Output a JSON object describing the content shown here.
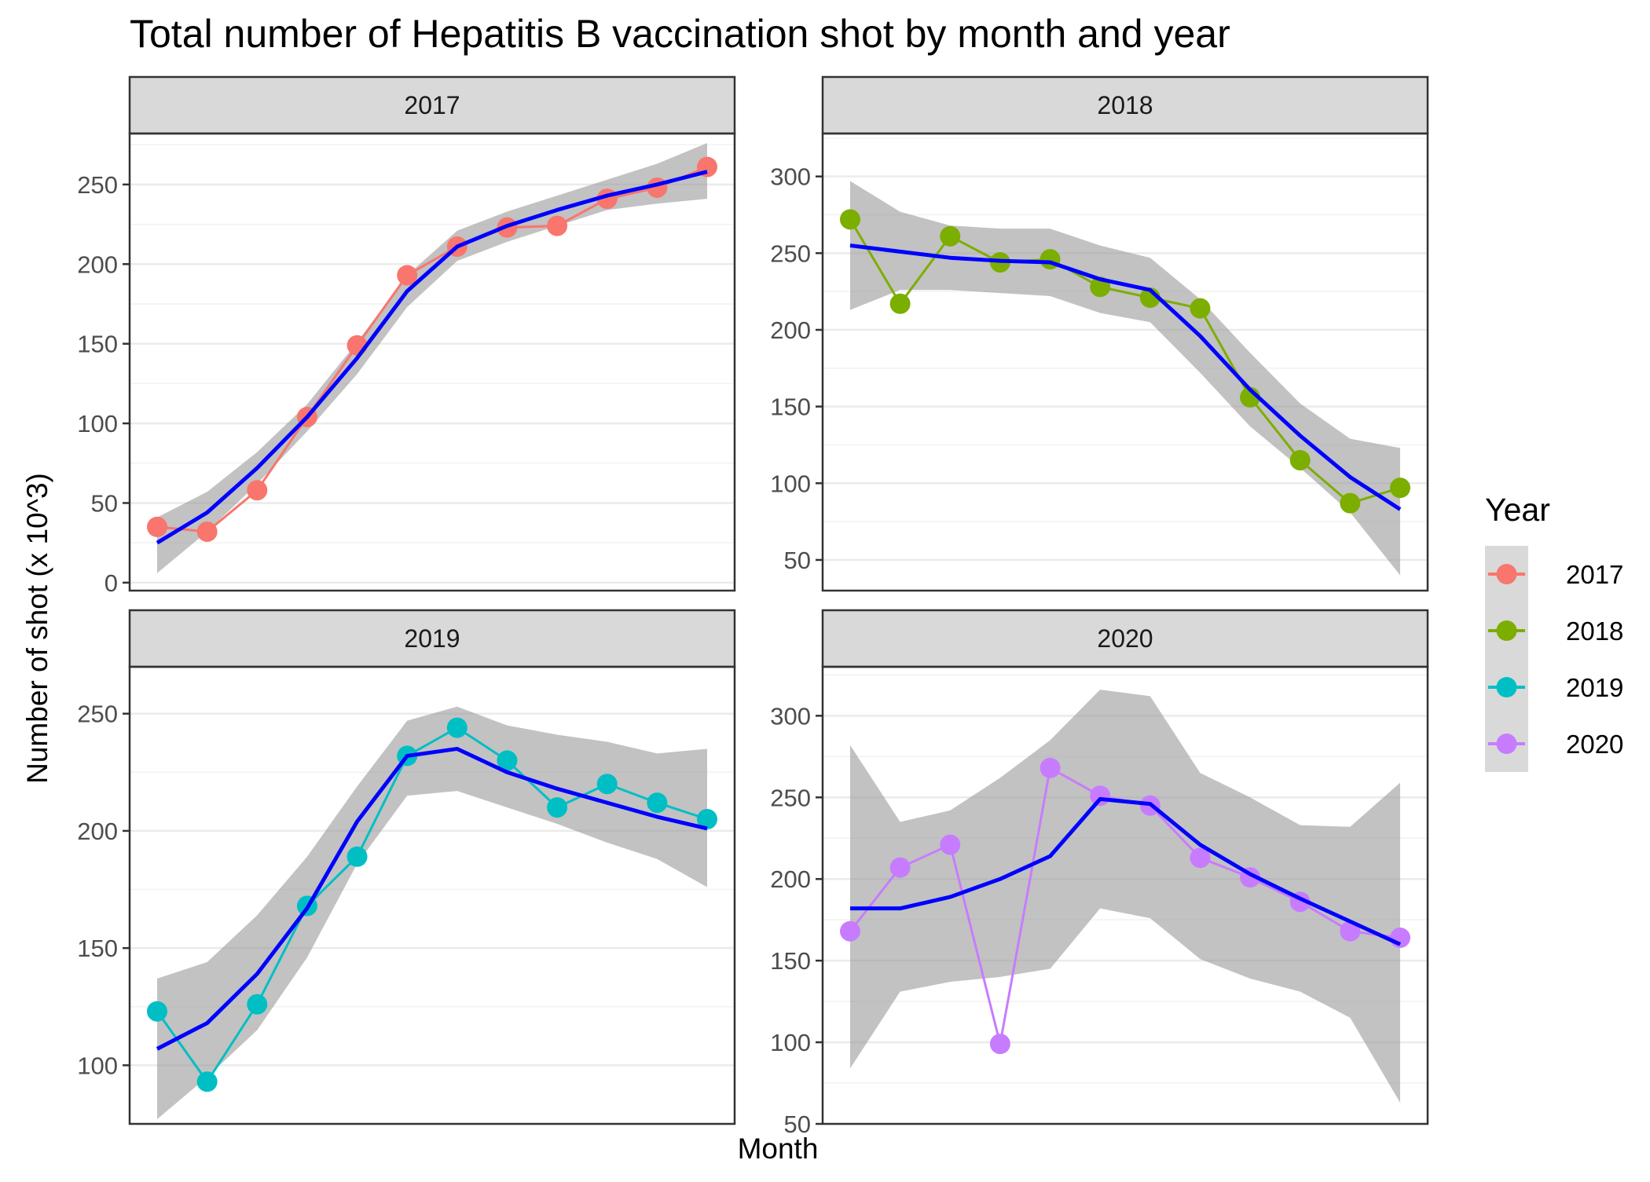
{
  "chart_data": {
    "type": "line",
    "title": "Total number of Hepatitis B vaccination shot by month and year",
    "xlabel": "Month",
    "ylabel": "Number of shot (x 10^3)",
    "facet_scales": "free_y",
    "x": [
      1,
      2,
      3,
      4,
      5,
      6,
      7,
      8,
      9,
      10,
      11,
      12
    ],
    "legend": {
      "title": "Year",
      "position": "right",
      "entries": [
        "2017",
        "2018",
        "2019",
        "2020"
      ]
    },
    "grid": true,
    "smooth_color": "#0000ff",
    "band_color": "#999999",
    "panels": [
      {
        "label": "2017",
        "color": "#f8766d",
        "ylim": [
          -5,
          282
        ],
        "yticks": [
          0,
          50,
          100,
          150,
          200,
          250
        ],
        "values": [
          35,
          32,
          58,
          104,
          149,
          193,
          211,
          223,
          224,
          241,
          248,
          261
        ],
        "smooth": [
          25,
          44,
          72,
          104,
          141,
          183,
          211,
          224,
          234,
          243,
          250,
          258
        ],
        "ci_upper": [
          41,
          57,
          82,
          112,
          151,
          193,
          221,
          233,
          243,
          253,
          263,
          276
        ],
        "ci_lower": [
          6,
          32,
          62,
          95,
          131,
          173,
          202,
          214,
          224,
          234,
          238,
          241
        ]
      },
      {
        "label": "2018",
        "color": "#7cae00",
        "ylim": [
          30,
          328
        ],
        "yticks": [
          50,
          100,
          150,
          200,
          250,
          300
        ],
        "values": [
          272,
          217,
          261,
          244,
          246,
          228,
          221,
          214,
          156,
          115,
          87,
          97
        ],
        "smooth": [
          255,
          251,
          247,
          245,
          244,
          233,
          226,
          196,
          161,
          131,
          104,
          83
        ],
        "ci_upper": [
          297,
          277,
          268,
          266,
          266,
          255,
          247,
          220,
          185,
          152,
          129,
          123
        ],
        "ci_lower": [
          213,
          226,
          226,
          224,
          222,
          211,
          205,
          172,
          137,
          110,
          81,
          40
        ]
      },
      {
        "label": "2019",
        "color": "#00bfc4",
        "ylim": [
          75,
          270
        ],
        "yticks": [
          100,
          150,
          200,
          250
        ],
        "values": [
          123,
          93,
          126,
          168,
          189,
          232,
          244,
          230,
          210,
          220,
          212,
          205
        ],
        "smooth": [
          107,
          118,
          139,
          167,
          204,
          232,
          235,
          225,
          218,
          212,
          206,
          201
        ],
        "ci_upper": [
          137,
          144,
          164,
          189,
          219,
          247,
          253,
          245,
          241,
          238,
          233,
          235
        ],
        "ci_lower": [
          77,
          95,
          115,
          146,
          186,
          215,
          217,
          210,
          203,
          195,
          188,
          176
        ]
      },
      {
        "label": "2020",
        "color": "#c77cff",
        "ylim": [
          50,
          330
        ],
        "yticks": [
          50,
          100,
          150,
          200,
          250,
          300
        ],
        "values": [
          168,
          207,
          221,
          99,
          268,
          251,
          245,
          213,
          201,
          186,
          168,
          164
        ],
        "smooth": [
          182,
          182,
          189,
          200,
          214,
          249,
          246,
          221,
          203,
          188,
          174,
          160
        ],
        "ci_upper": [
          282,
          235,
          242,
          262,
          285,
          316,
          312,
          265,
          250,
          233,
          232,
          259
        ],
        "ci_lower": [
          84,
          131,
          137,
          140,
          145,
          182,
          176,
          151,
          139,
          131,
          115,
          63
        ]
      }
    ]
  }
}
